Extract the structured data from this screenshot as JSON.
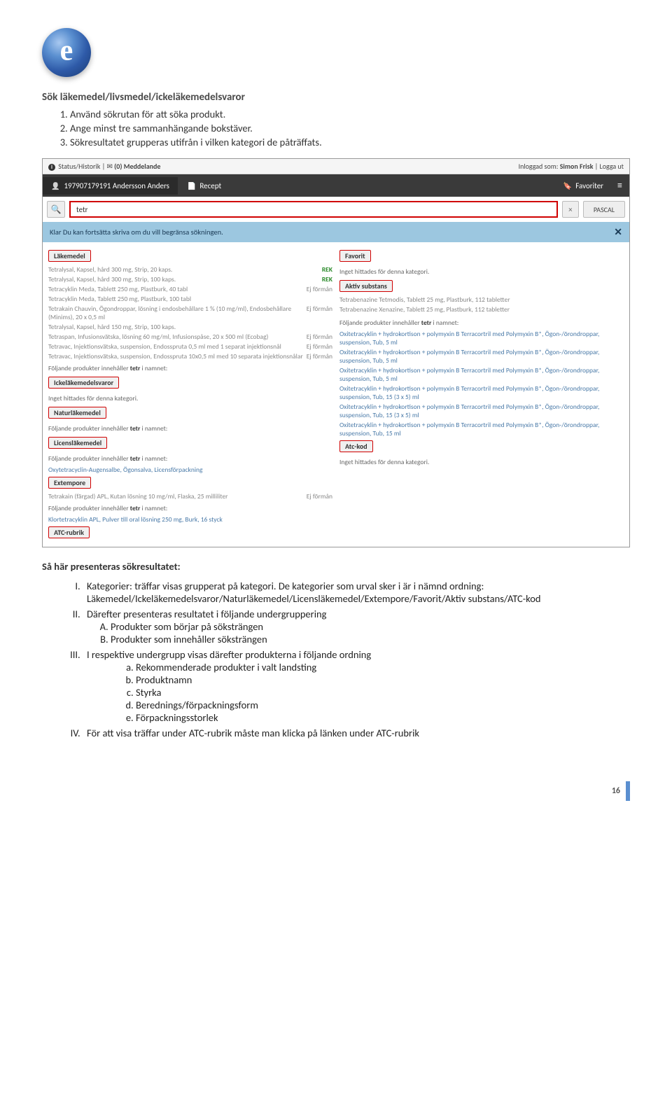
{
  "header": {
    "title": "Sök läkemedel/livsmedel/ickeläkemedelsvaror",
    "steps": [
      "Använd sökrutan för att söka produkt.",
      "Ange minst tre sammanhängande bokstäver.",
      "Sökresultatet grupperas utifrån i vilken kategori de påträffats."
    ]
  },
  "screenshot": {
    "topbar": {
      "status": "Status/Historik",
      "messages": "(0) Meddelande",
      "envelope": "✉",
      "logged_in_label": "Inloggad som:",
      "user": "Simon Frisk",
      "logout": "Logga ut"
    },
    "navbar": {
      "patient": "197907179191 Andersson Anders",
      "tab": "Recept",
      "favorites": "Favoriter",
      "menu": "≡"
    },
    "search": {
      "icon": "🔍",
      "query": "tetr",
      "clear": "×",
      "pascal": "PASCAL"
    },
    "hint": {
      "text": "Klar Du kan fortsätta skriva om du vill begränsa sökningen.",
      "close": "✕"
    },
    "left": {
      "cat_lakemedel": "Läkemedel",
      "lakemedel_rows": [
        {
          "name": "Tetralysal, Kapsel, hård 300 mg, Strip, 20 kaps.",
          "tag": "REK"
        },
        {
          "name": "Tetralysal, Kapsel, hård 300 mg, Strip, 100 kaps.",
          "tag": "REK"
        },
        {
          "name": "Tetracyklin Meda, Tablett 250 mg, Plastburk, 40 tabl",
          "tag": "Ej förmån"
        },
        {
          "name": "Tetracyklin Meda, Tablett 250 mg, Plastburk, 100 tabl",
          "tag": ""
        },
        {
          "name": "Tetrakain Chauvin, Ögondroppar, lösning i endosbehållare 1 % (10 mg/ml), Endosbehållare (Minims), 20 x 0,5 ml",
          "tag": "Ej förmån"
        },
        {
          "name": "Tetralysal, Kapsel, hård 150 mg, Strip, 100 kaps.",
          "tag": ""
        },
        {
          "name": "Tetraspan, Infusionsvätska, lösning 60 mg/ml, Infusionspåse, 20 x 500 ml (Ecobag)",
          "tag": "Ej förmån"
        },
        {
          "name": "Tetravac, Injektionsvätska, suspension, Endosspruta 0,5 ml med 1 separat injektionsnål",
          "tag": "Ej förmån"
        },
        {
          "name": "Tetravac, Injektionsvätska, suspension, Endosspruta 10x0,5 ml med 10 separata injektionsnålar",
          "tag": "Ej förmån"
        }
      ],
      "contains_note": "Följande produkter innehåller ",
      "contains_bold": "tetr",
      "contains_after": " i namnet:",
      "cat_icke": "Ickeläkemedelsvaror",
      "none": "Inget hittades för denna kategori.",
      "cat_natur": "Naturläkemedel",
      "cat_licens": "Licensläkemedel",
      "licens_row": "Oxytetracyclin-Augensalbe, Ögonsalva, Licensförpackning",
      "cat_extempore": "Extempore",
      "extempore_row": {
        "name": "Tetrakain (färgad) APL, Kutan lösning 10 mg/ml, Flaska, 25 milliliter",
        "tag": "Ej förmån"
      },
      "extempore_row2": "Klortetracyklin APL, Pulver till oral lösning 250 mg, Burk, 16 styck",
      "cat_atc": "ATC-rubrik"
    },
    "right": {
      "cat_favorit": "Favorit",
      "none": "Inget hittades för denna kategori.",
      "cat_aktiv": "Aktiv substans",
      "aktiv_rows": [
        "Tetrabenazine Tetmodis, Tablett 25 mg, Plastburk, 112 tabletter",
        "Tetrabenazine Xenazine, Tablett 25 mg, Plastburk, 112 tabletter"
      ],
      "contains_note": "Följande produkter innehåller ",
      "contains_bold": "tetr",
      "contains_after": " i namnet:",
      "oxi_rows": [
        "Oxitetracyklin + hydrokortison + polymyxin B Terracortril med Polymyxin B*, Ögon-/örondroppar, suspension, Tub, 5 ml",
        "Oxitetracyklin + hydrokortison + polymyxin B Terracortril med Polymyxin B*, Ögon-/örondroppar, suspension, Tub, 5 ml",
        "Oxitetracyklin + hydrokortison + polymyxin B Terracortril med Polymyxin B*, Ögon-/örondroppar, suspension, Tub, 5 ml",
        "Oxitetracyklin + hydrokortison + polymyxin B Terracortril med Polymyxin B*, Ögon-/örondroppar, suspension, Tub, 15 (3 x 5) ml",
        "Oxitetracyklin + hydrokortison + polymyxin B Terracortril med Polymyxin B*, Ögon-/örondroppar, suspension, Tub, 15 (3 x 5) ml",
        "Oxitetracyklin + hydrokortison + polymyxin B Terracortril med Polymyxin B*, Ögon-/örondroppar, suspension, Tub, 15 ml"
      ],
      "cat_atckod": "Atc-kod"
    }
  },
  "presentation": {
    "heading": "Så här presenteras sökresultatet:",
    "items": {
      "i": "Kategorier: träffar visas grupperat på kategori. De kategorier som urval sker i är i nämnd ordning: Läkemedel/Ickeläkemedelsvaror/Naturläkemedel/Licensläkemedel/Extempore/Favorit/Aktiv substans/ATC-kod",
      "ii": "Därefter presenteras resultatet i följande undergruppering",
      "ii_a": "Produkter som börjar på söksträngen",
      "ii_b": "Produkter som innehåller söksträngen",
      "iii": "I respektive undergrupp visas därefter produkterna i följande ordning",
      "iii_a": "Rekommenderade produkter i valt landsting",
      "iii_b": "Produktnamn",
      "iii_c": "Styrka",
      "iii_d": "Berednings/förpackningsform",
      "iii_e": "Förpackningsstorlek",
      "iv": "För att visa träffar under ATC-rubrik måste man klicka på länken under ATC-rubrik"
    }
  },
  "footer": {
    "page": "16"
  }
}
